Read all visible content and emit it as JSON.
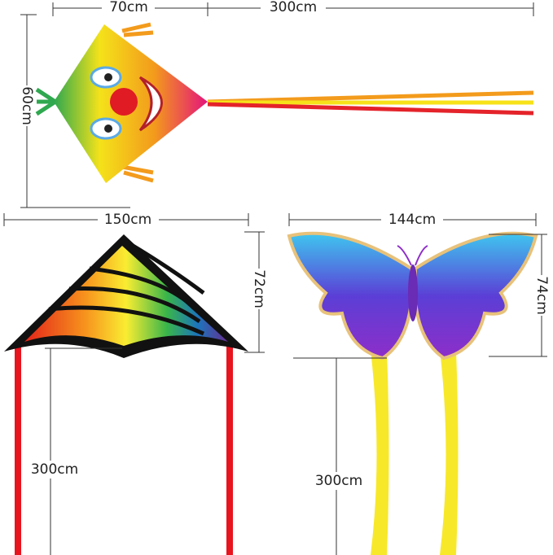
{
  "kites": [
    {
      "width": "70cm",
      "height": "60cm",
      "tail": "300cm"
    },
    {
      "width": "150cm",
      "height": "72cm",
      "tail": "300cm"
    },
    {
      "width": "144cm",
      "height": "74cm",
      "tail": "300cm"
    }
  ]
}
